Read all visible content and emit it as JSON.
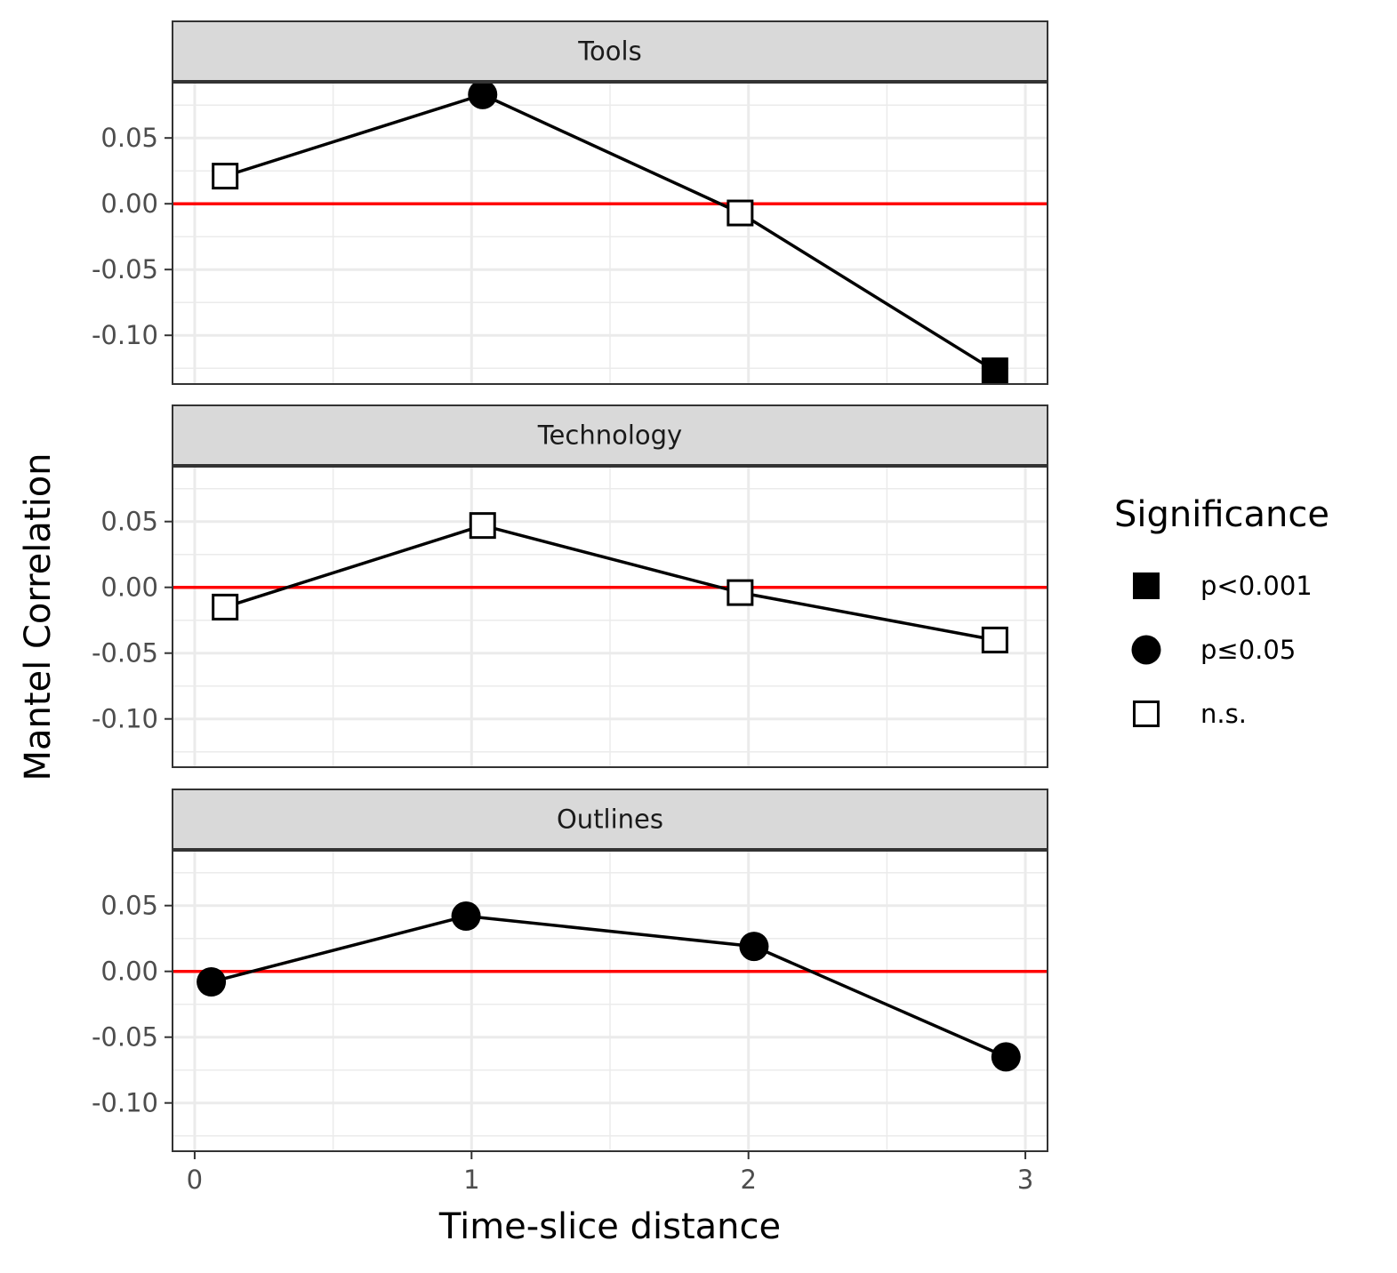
{
  "chart_data": {
    "type": "line",
    "facets": [
      {
        "title": "Tools",
        "x": [
          0.11,
          1.04,
          1.97,
          2.89
        ],
        "y": [
          0.021,
          0.083,
          -0.007,
          -0.127
        ],
        "significance": [
          "n.s.",
          "p≤0.05",
          "n.s.",
          "p<0.001"
        ]
      },
      {
        "title": "Technology",
        "x": [
          0.11,
          1.04,
          1.97,
          2.89
        ],
        "y": [
          -0.015,
          0.047,
          -0.004,
          -0.04
        ],
        "significance": [
          "n.s.",
          "n.s.",
          "n.s.",
          "n.s."
        ]
      },
      {
        "title": "Outlines",
        "x": [
          0.06,
          0.98,
          2.02,
          2.93
        ],
        "y": [
          -0.008,
          0.042,
          0.019,
          -0.065
        ],
        "significance": [
          "p≤0.05",
          "p≤0.05",
          "p≤0.05",
          "p≤0.05"
        ]
      }
    ],
    "xlabel": "Time-slice distance",
    "ylabel": "Mantel Correlation",
    "xlim": [
      -0.08,
      3.08
    ],
    "ylim": [
      -0.137,
      0.092
    ],
    "xticks": [
      0,
      1,
      2,
      3
    ],
    "xtick_labels": [
      "0",
      "1",
      "2",
      "3"
    ],
    "yticks": [
      0.05,
      0.0,
      -0.05,
      -0.1
    ],
    "ytick_labels": [
      "0.05",
      "0.00",
      "-0.05",
      "-0.10"
    ],
    "reference_line": {
      "y": 0,
      "color": "#ff0000"
    },
    "line_color": "#000000",
    "grid": true,
    "legend": {
      "title": "Significance",
      "position": "right",
      "entries": [
        {
          "label": "p<0.001",
          "shape": "filled-square"
        },
        {
          "label": "p≤0.05",
          "shape": "filled-circle"
        },
        {
          "label": "n.s.",
          "shape": "open-square"
        }
      ]
    }
  }
}
